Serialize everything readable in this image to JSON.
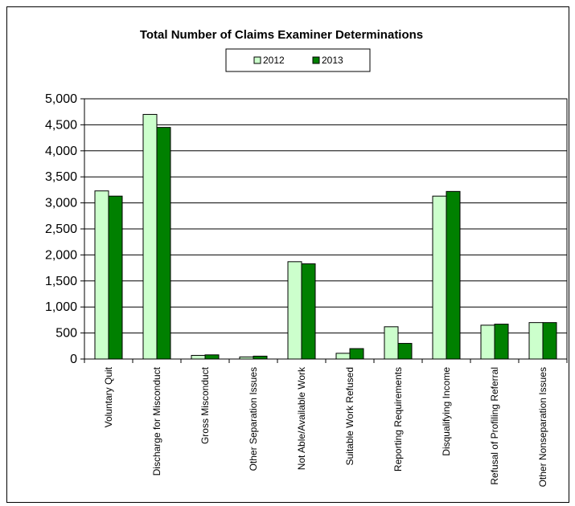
{
  "chart_data": {
    "type": "bar",
    "title": "Total Number of Claims Examiner Determinations",
    "xlabel": "",
    "ylabel": "",
    "ylim": [
      0,
      5000
    ],
    "yticks": [
      "0",
      "500",
      "1,000",
      "1,500",
      "2,000",
      "2,500",
      "3,000",
      "3,500",
      "4,000",
      "4,500",
      "5,000"
    ],
    "grid": true,
    "legend_position": "top-center",
    "categories": [
      "Voluntary Quit",
      "Discharge for Misconduct",
      "Gross Misconduct",
      "Other Separation Issues",
      "Not Able/Available Work",
      "Suitable Work Refused",
      "Reporting Requirements",
      "Disqualifying Income",
      "Refusal of Profiling Referral",
      "Other Nonseparation Issues"
    ],
    "series": [
      {
        "name": "2012",
        "color": "#ccffcc",
        "values": [
          3230,
          4700,
          70,
          40,
          1870,
          110,
          620,
          3130,
          650,
          700
        ]
      },
      {
        "name": "2013",
        "color": "#008000",
        "values": [
          3130,
          4450,
          80,
          55,
          1830,
          200,
          300,
          3220,
          670,
          700
        ]
      }
    ]
  }
}
